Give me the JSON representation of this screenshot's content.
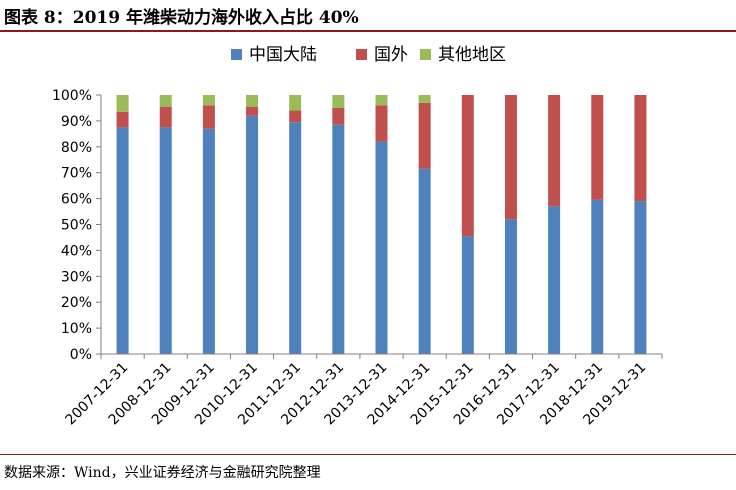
{
  "figure_title": "图表 8：2019 年潍柴动力海外收入占比 40%",
  "source_note": "数据来源：Wind，兴业证券经济与金融研究院整理",
  "chart_data": {
    "type": "bar",
    "stacked": true,
    "title": "",
    "xlabel": "",
    "ylabel": "",
    "ylim": [
      0,
      100
    ],
    "y_ticks": [
      "0%",
      "10%",
      "20%",
      "30%",
      "40%",
      "50%",
      "60%",
      "70%",
      "80%",
      "90%",
      "100%"
    ],
    "categories": [
      "2007-12-31",
      "2008-12-31",
      "2009-12-31",
      "2010-12-31",
      "2011-12-31",
      "2012-12-31",
      "2013-12-31",
      "2014-12-31",
      "2015-12-31",
      "2016-12-31",
      "2017-12-31",
      "2018-12-31",
      "2019-12-31"
    ],
    "series": [
      {
        "name": "中国大陆",
        "color": "#4f81bd",
        "values": [
          87.5,
          87.5,
          87,
          92,
          89.5,
          88.5,
          82,
          71.5,
          45.5,
          52,
          57,
          59.5,
          59
        ]
      },
      {
        "name": "国外",
        "color": "#c0504d",
        "values": [
          6,
          8,
          9,
          3.5,
          4.5,
          6.5,
          14,
          25.5,
          54.5,
          48,
          43,
          40.5,
          41
        ]
      },
      {
        "name": "其他地区",
        "color": "#9bbb59",
        "values": [
          6.5,
          4.5,
          4,
          4.5,
          6,
          5,
          4,
          3,
          0,
          0,
          0,
          0,
          0
        ]
      }
    ],
    "legend_position": "top-center",
    "grid": false
  }
}
